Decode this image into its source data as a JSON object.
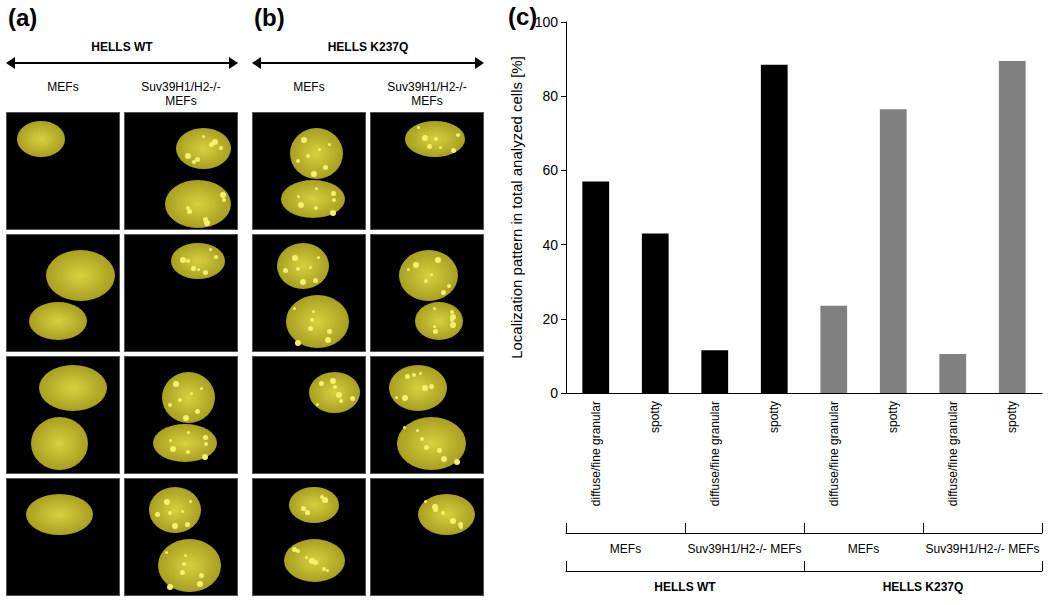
{
  "panels": [
    {
      "label": "(a)",
      "title": "HELLS WT",
      "columns": [
        "MEFs",
        "Suv39H1/H2-/- MEFs"
      ]
    },
    {
      "label": "(b)",
      "title": "HELLS K237Q",
      "columns": [
        "MEFs",
        "Suv39H1/H2-/- MEFs"
      ]
    }
  ],
  "chart_data": {
    "label": "(c)",
    "type": "bar",
    "y_label": "Localization pattern in total analyzed cells [%]",
    "categories": [
      "diffuse/fine granular",
      "spotty",
      "diffuse/fine granular",
      "spotty",
      "diffuse/fine granular",
      "spotty",
      "diffuse/fine granular",
      "spotty"
    ],
    "values": [
      57,
      43,
      11.5,
      88.5,
      23.5,
      76.5,
      10.5,
      89.5
    ],
    "colors": [
      "#000000",
      "#000000",
      "#000000",
      "#000000",
      "#808080",
      "#808080",
      "#808080",
      "#808080"
    ],
    "subgroups": [
      "MEFs",
      "Suv39H1/H2-/- MEFs",
      "MEFs",
      "Suv39H1/H2-/- MEFs"
    ],
    "groups": [
      "HELLS WT",
      "HELLS K237Q"
    ],
    "ylim": [
      0,
      100
    ],
    "yticks": [
      0,
      20,
      40,
      60,
      80,
      100
    ],
    "grid": false
  }
}
